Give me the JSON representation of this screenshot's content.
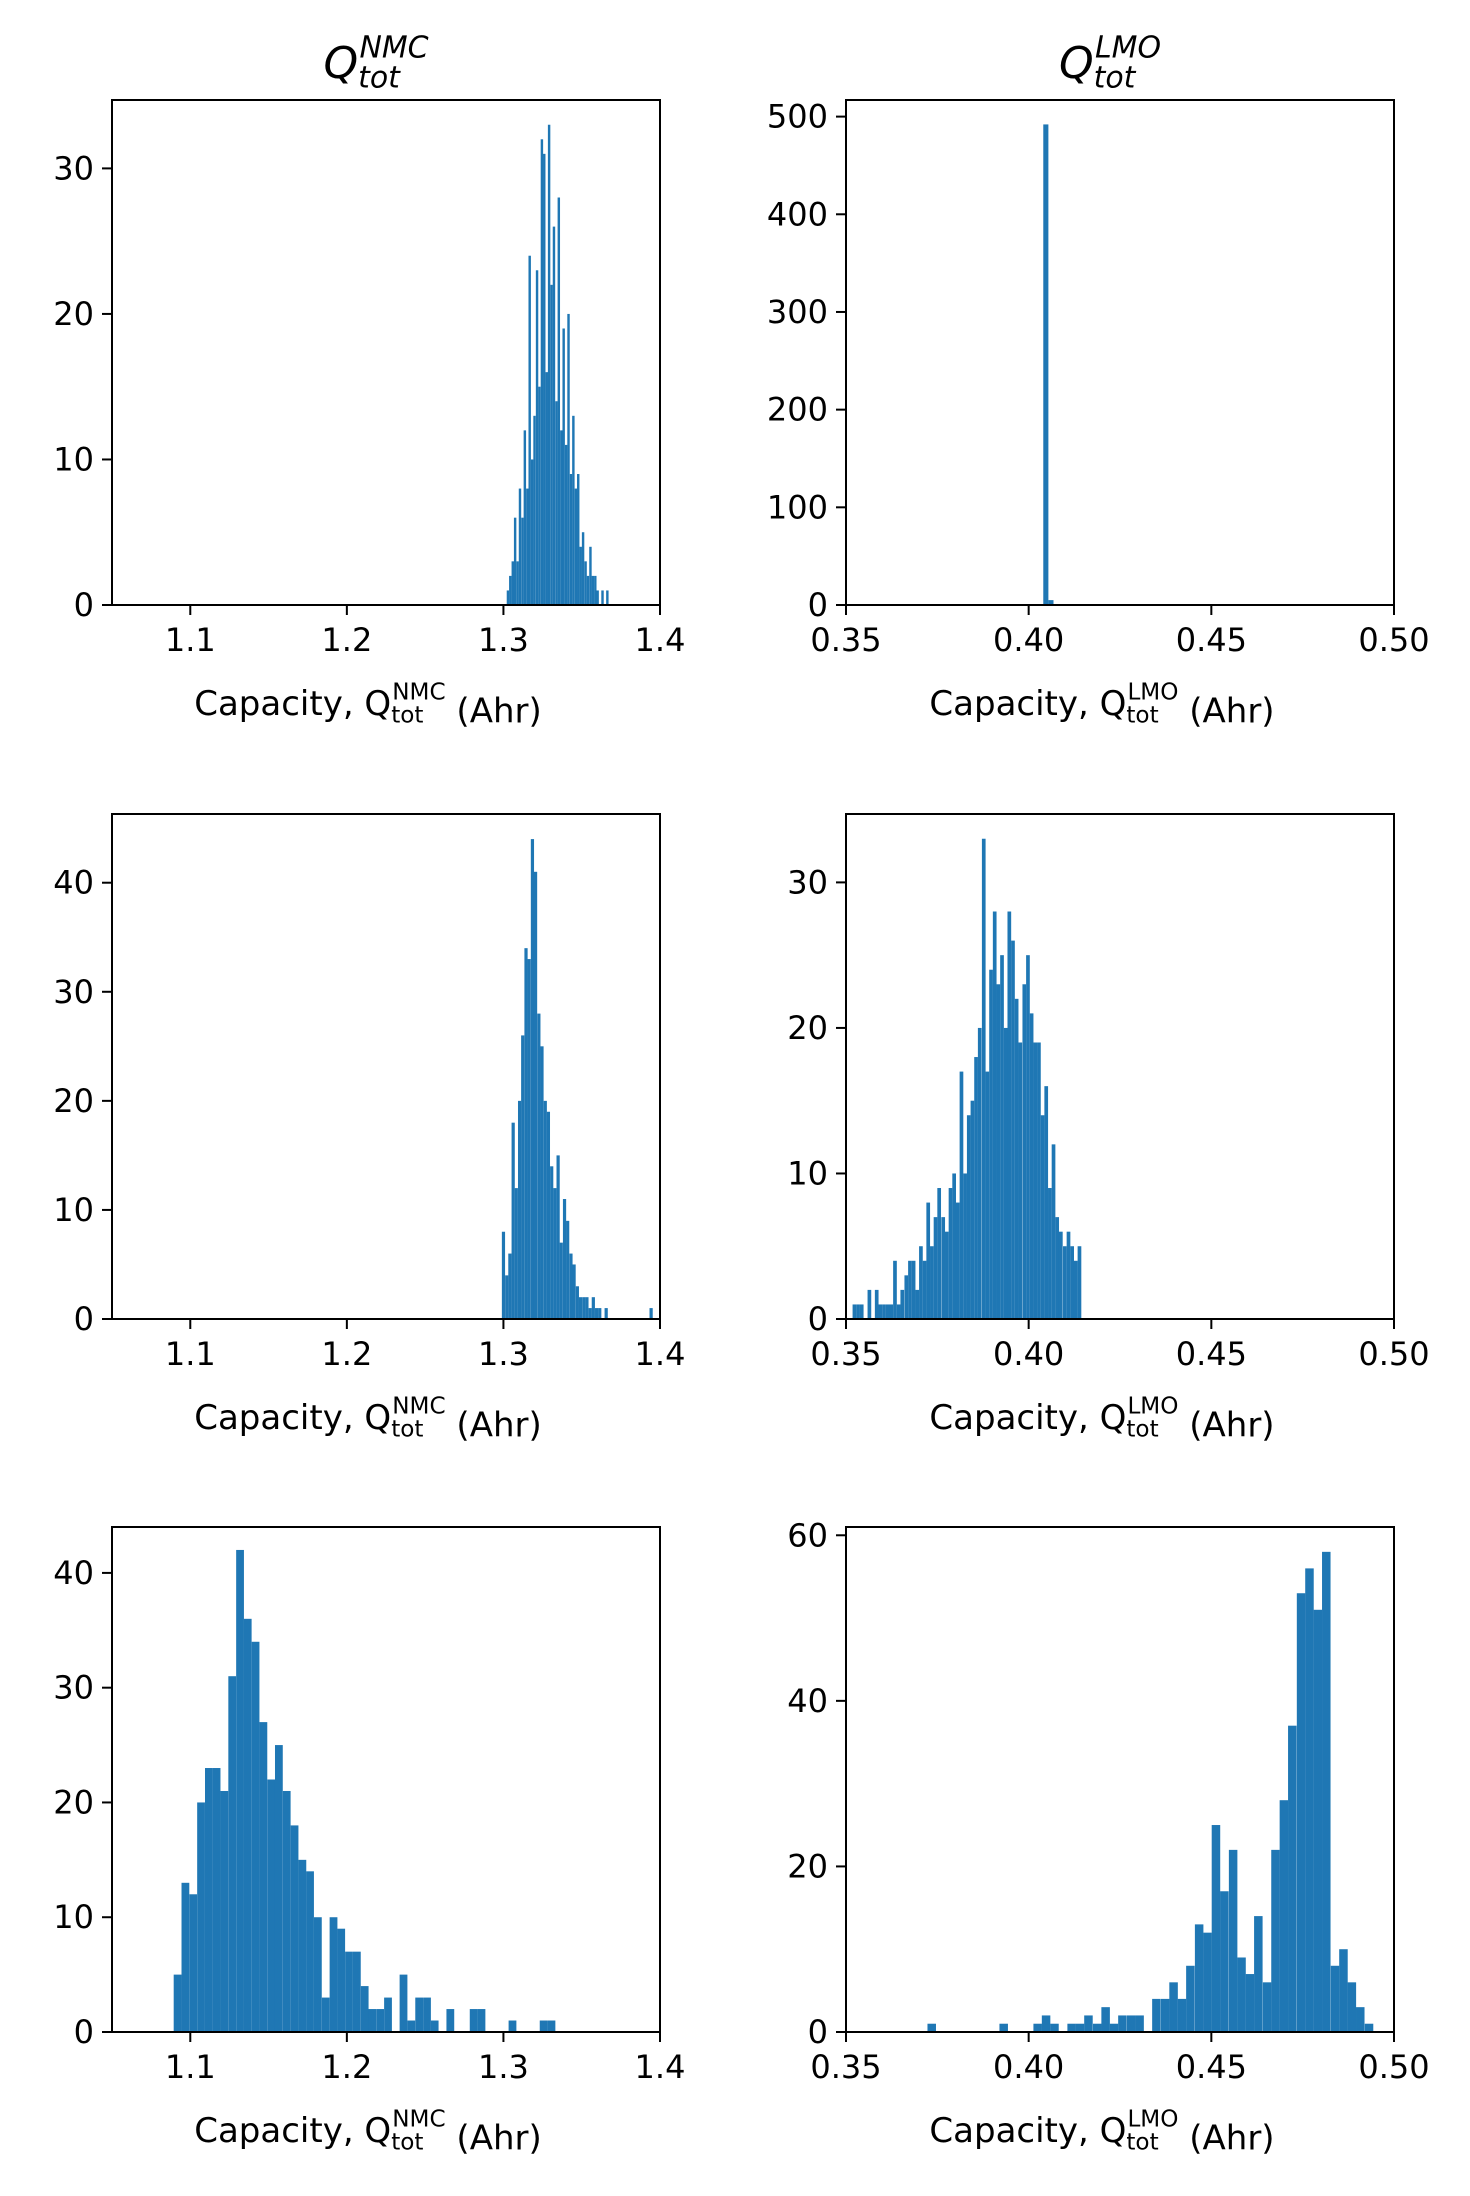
{
  "colors": {
    "bar": "#1f77b4",
    "axis": "#000000",
    "background": "#ffffff"
  },
  "chart_data": [
    {
      "type": "bar",
      "title": "Q_tot^NMC",
      "title_base": "Q",
      "title_sub": "tot",
      "title_sup": "NMC",
      "xlabel": "Capacity, Q_tot^NMC (Ahr)",
      "xlabel_prefix": "Capacity, Q",
      "xlabel_sub": "tot",
      "xlabel_sup": "NMC",
      "xlabel_suffix": " (Ahr)",
      "ylabel": "",
      "xlim": [
        1.05,
        1.4
      ],
      "ylim": [
        0,
        34.7
      ],
      "xticks": [
        1.1,
        1.2,
        1.3,
        1.4
      ],
      "xtick_labels": [
        "1.1",
        "1.2",
        "1.3",
        "1.4"
      ],
      "yticks": [
        0,
        10,
        20,
        30
      ],
      "ytick_labels": [
        "0",
        "10",
        "20",
        "30"
      ],
      "bin_width": 0.00155,
      "bins": [
        {
          "x": 1.3021,
          "y": 1
        },
        {
          "x": 1.3036,
          "y": 2
        },
        {
          "x": 1.3052,
          "y": 3
        },
        {
          "x": 1.3067,
          "y": 6
        },
        {
          "x": 1.3083,
          "y": 3
        },
        {
          "x": 1.3098,
          "y": 8
        },
        {
          "x": 1.3114,
          "y": 6
        },
        {
          "x": 1.3129,
          "y": 12
        },
        {
          "x": 1.3145,
          "y": 8
        },
        {
          "x": 1.316,
          "y": 24
        },
        {
          "x": 1.3176,
          "y": 10
        },
        {
          "x": 1.3191,
          "y": 13
        },
        {
          "x": 1.3207,
          "y": 23
        },
        {
          "x": 1.3222,
          "y": 15
        },
        {
          "x": 1.3238,
          "y": 32
        },
        {
          "x": 1.3253,
          "y": 31
        },
        {
          "x": 1.3269,
          "y": 16
        },
        {
          "x": 1.3284,
          "y": 33
        },
        {
          "x": 1.33,
          "y": 22
        },
        {
          "x": 1.3315,
          "y": 26
        },
        {
          "x": 1.3331,
          "y": 14
        },
        {
          "x": 1.3346,
          "y": 28
        },
        {
          "x": 1.3362,
          "y": 12
        },
        {
          "x": 1.3377,
          "y": 19
        },
        {
          "x": 1.3393,
          "y": 11
        },
        {
          "x": 1.3408,
          "y": 20
        },
        {
          "x": 1.3424,
          "y": 9
        },
        {
          "x": 1.3439,
          "y": 13
        },
        {
          "x": 1.3455,
          "y": 8
        },
        {
          "x": 1.347,
          "y": 9
        },
        {
          "x": 1.3486,
          "y": 4
        },
        {
          "x": 1.3501,
          "y": 5
        },
        {
          "x": 1.3517,
          "y": 3
        },
        {
          "x": 1.3532,
          "y": 2
        },
        {
          "x": 1.3548,
          "y": 4
        },
        {
          "x": 1.3563,
          "y": 2
        },
        {
          "x": 1.3579,
          "y": 2
        },
        {
          "x": 1.3594,
          "y": 1
        },
        {
          "x": 1.3625,
          "y": 1
        },
        {
          "x": 1.3656,
          "y": 1
        }
      ]
    },
    {
      "type": "bar",
      "title": "Q_tot^LMO",
      "title_base": "Q",
      "title_sub": "tot",
      "title_sup": "LMO",
      "xlabel": "Capacity, Q_tot^LMO (Ahr)",
      "xlabel_prefix": "Capacity, Q",
      "xlabel_sub": "tot",
      "xlabel_sup": "LMO",
      "xlabel_suffix": " (Ahr)",
      "ylabel": "",
      "xlim": [
        0.35,
        0.5
      ],
      "ylim": [
        0,
        517
      ],
      "xticks": [
        0.35,
        0.4,
        0.45,
        0.5
      ],
      "xtick_labels": [
        "0.35",
        "0.40",
        "0.45",
        "0.50"
      ],
      "yticks": [
        0,
        100,
        200,
        300,
        400,
        500
      ],
      "ytick_labels": [
        "0",
        "100",
        "200",
        "300",
        "400",
        "500"
      ],
      "bin_width": 0.0014,
      "bins": [
        {
          "x": 0.404,
          "y": 492
        },
        {
          "x": 0.4054,
          "y": 5
        },
        {
          "x": 0.4068,
          "y": 1
        },
        {
          "x": 0.418,
          "y": 1
        }
      ]
    },
    {
      "type": "bar",
      "title": "",
      "xlabel": "Capacity, Q_tot^NMC (Ahr)",
      "xlabel_prefix": "Capacity, Q",
      "xlabel_sub": "tot",
      "xlabel_sup": "NMC",
      "xlabel_suffix": " (Ahr)",
      "ylabel": "",
      "xlim": [
        1.05,
        1.4
      ],
      "ylim": [
        0,
        46.3
      ],
      "xticks": [
        1.1,
        1.2,
        1.3,
        1.4
      ],
      "xtick_labels": [
        "1.1",
        "1.2",
        "1.3",
        "1.4"
      ],
      "yticks": [
        0,
        10,
        20,
        30,
        40
      ],
      "ytick_labels": [
        "0",
        "10",
        "20",
        "30",
        "40"
      ],
      "bin_width": 0.00205,
      "bins": [
        {
          "x": 1.299,
          "y": 8
        },
        {
          "x": 1.3011,
          "y": 4
        },
        {
          "x": 1.3031,
          "y": 6
        },
        {
          "x": 1.3052,
          "y": 18
        },
        {
          "x": 1.3072,
          "y": 12
        },
        {
          "x": 1.3093,
          "y": 20
        },
        {
          "x": 1.3113,
          "y": 26
        },
        {
          "x": 1.3134,
          "y": 34
        },
        {
          "x": 1.3154,
          "y": 33
        },
        {
          "x": 1.3175,
          "y": 44
        },
        {
          "x": 1.3195,
          "y": 41
        },
        {
          "x": 1.3216,
          "y": 28
        },
        {
          "x": 1.3236,
          "y": 25
        },
        {
          "x": 1.3257,
          "y": 20
        },
        {
          "x": 1.3277,
          "y": 19
        },
        {
          "x": 1.3298,
          "y": 14
        },
        {
          "x": 1.3318,
          "y": 12
        },
        {
          "x": 1.3339,
          "y": 15
        },
        {
          "x": 1.3359,
          "y": 7
        },
        {
          "x": 1.338,
          "y": 11
        },
        {
          "x": 1.34,
          "y": 9
        },
        {
          "x": 1.3421,
          "y": 6
        },
        {
          "x": 1.3441,
          "y": 5
        },
        {
          "x": 1.3462,
          "y": 3
        },
        {
          "x": 1.3482,
          "y": 2
        },
        {
          "x": 1.3503,
          "y": 2
        },
        {
          "x": 1.3523,
          "y": 2
        },
        {
          "x": 1.3544,
          "y": 1
        },
        {
          "x": 1.3564,
          "y": 2
        },
        {
          "x": 1.3585,
          "y": 1
        },
        {
          "x": 1.3605,
          "y": 1
        },
        {
          "x": 1.3646,
          "y": 1
        },
        {
          "x": 1.3933,
          "y": 1
        }
      ]
    },
    {
      "type": "bar",
      "title": "",
      "xlabel": "Capacity, Q_tot^LMO (Ahr)",
      "xlabel_prefix": "Capacity, Q",
      "xlabel_sub": "tot",
      "xlabel_sup": "LMO",
      "xlabel_suffix": " (Ahr)",
      "ylabel": "",
      "xlim": [
        0.35,
        0.5
      ],
      "ylim": [
        0,
        34.7
      ],
      "xticks": [
        0.35,
        0.4,
        0.45,
        0.5
      ],
      "xtick_labels": [
        "0.35",
        "0.40",
        "0.45",
        "0.50"
      ],
      "yticks": [
        0,
        10,
        20,
        30
      ],
      "ytick_labels": [
        "0",
        "10",
        "20",
        "30"
      ],
      "bin_width": 0.00101,
      "bins": [
        {
          "x": 0.3518,
          "y": 1
        },
        {
          "x": 0.3528,
          "y": 1
        },
        {
          "x": 0.3538,
          "y": 1
        },
        {
          "x": 0.3549,
          "y": 0
        },
        {
          "x": 0.3559,
          "y": 2
        },
        {
          "x": 0.3569,
          "y": 0
        },
        {
          "x": 0.3579,
          "y": 2
        },
        {
          "x": 0.3589,
          "y": 1
        },
        {
          "x": 0.3599,
          "y": 1
        },
        {
          "x": 0.3609,
          "y": 1
        },
        {
          "x": 0.3619,
          "y": 1
        },
        {
          "x": 0.3629,
          "y": 4
        },
        {
          "x": 0.3639,
          "y": 1
        },
        {
          "x": 0.3649,
          "y": 2
        },
        {
          "x": 0.366,
          "y": 3
        },
        {
          "x": 0.367,
          "y": 4
        },
        {
          "x": 0.368,
          "y": 4
        },
        {
          "x": 0.369,
          "y": 2
        },
        {
          "x": 0.37,
          "y": 5
        },
        {
          "x": 0.371,
          "y": 4
        },
        {
          "x": 0.372,
          "y": 8
        },
        {
          "x": 0.373,
          "y": 5
        },
        {
          "x": 0.374,
          "y": 7
        },
        {
          "x": 0.375,
          "y": 9
        },
        {
          "x": 0.3761,
          "y": 7
        },
        {
          "x": 0.3771,
          "y": 6
        },
        {
          "x": 0.3781,
          "y": 9
        },
        {
          "x": 0.3791,
          "y": 10
        },
        {
          "x": 0.3801,
          "y": 8
        },
        {
          "x": 0.3811,
          "y": 17
        },
        {
          "x": 0.3821,
          "y": 10
        },
        {
          "x": 0.3831,
          "y": 14
        },
        {
          "x": 0.3841,
          "y": 15
        },
        {
          "x": 0.3851,
          "y": 18
        },
        {
          "x": 0.3861,
          "y": 20
        },
        {
          "x": 0.3872,
          "y": 33
        },
        {
          "x": 0.3882,
          "y": 17
        },
        {
          "x": 0.3892,
          "y": 24
        },
        {
          "x": 0.3902,
          "y": 28
        },
        {
          "x": 0.3912,
          "y": 23
        },
        {
          "x": 0.3922,
          "y": 25
        },
        {
          "x": 0.3932,
          "y": 20
        },
        {
          "x": 0.3942,
          "y": 28
        },
        {
          "x": 0.3952,
          "y": 26
        },
        {
          "x": 0.3962,
          "y": 22
        },
        {
          "x": 0.3972,
          "y": 19
        },
        {
          "x": 0.3983,
          "y": 23
        },
        {
          "x": 0.3993,
          "y": 25
        },
        {
          "x": 0.4003,
          "y": 21
        },
        {
          "x": 0.4013,
          "y": 19
        },
        {
          "x": 0.4023,
          "y": 19
        },
        {
          "x": 0.4033,
          "y": 14
        },
        {
          "x": 0.4043,
          "y": 16
        },
        {
          "x": 0.4053,
          "y": 9
        },
        {
          "x": 0.4063,
          "y": 12
        },
        {
          "x": 0.4073,
          "y": 7
        },
        {
          "x": 0.4083,
          "y": 6
        },
        {
          "x": 0.4094,
          "y": 5
        },
        {
          "x": 0.4104,
          "y": 6
        },
        {
          "x": 0.4114,
          "y": 5
        },
        {
          "x": 0.4124,
          "y": 4
        },
        {
          "x": 0.4134,
          "y": 5
        }
      ]
    },
    {
      "type": "bar",
      "title": "",
      "xlabel": "Capacity, Q_tot^NMC (Ahr)",
      "xlabel_prefix": "Capacity, Q",
      "xlabel_sub": "tot",
      "xlabel_sup": "NMC",
      "xlabel_suffix": " (Ahr)",
      "ylabel": "",
      "xlim": [
        1.05,
        1.4
      ],
      "ylim": [
        0,
        44
      ],
      "xticks": [
        1.1,
        1.2,
        1.3,
        1.4
      ],
      "xtick_labels": [
        "1.1",
        "1.2",
        "1.3",
        "1.4"
      ],
      "yticks": [
        0,
        10,
        20,
        30,
        40
      ],
      "ytick_labels": [
        "0",
        "10",
        "20",
        "30",
        "40"
      ],
      "bin_width": 0.00497,
      "bins": [
        {
          "x": 1.0894,
          "y": 5
        },
        {
          "x": 1.0944,
          "y": 13
        },
        {
          "x": 1.0994,
          "y": 12
        },
        {
          "x": 1.1044,
          "y": 20
        },
        {
          "x": 1.1094,
          "y": 23
        },
        {
          "x": 1.1143,
          "y": 23
        },
        {
          "x": 1.1193,
          "y": 21
        },
        {
          "x": 1.1243,
          "y": 31
        },
        {
          "x": 1.1293,
          "y": 42
        },
        {
          "x": 1.1342,
          "y": 36
        },
        {
          "x": 1.1392,
          "y": 34
        },
        {
          "x": 1.1442,
          "y": 27
        },
        {
          "x": 1.1492,
          "y": 22
        },
        {
          "x": 1.1541,
          "y": 25
        },
        {
          "x": 1.1591,
          "y": 21
        },
        {
          "x": 1.1641,
          "y": 18
        },
        {
          "x": 1.1691,
          "y": 15
        },
        {
          "x": 1.174,
          "y": 14
        },
        {
          "x": 1.179,
          "y": 10
        },
        {
          "x": 1.184,
          "y": 3
        },
        {
          "x": 1.189,
          "y": 10
        },
        {
          "x": 1.1939,
          "y": 9
        },
        {
          "x": 1.1989,
          "y": 7
        },
        {
          "x": 1.2039,
          "y": 7
        },
        {
          "x": 1.2089,
          "y": 4
        },
        {
          "x": 1.2138,
          "y": 2
        },
        {
          "x": 1.2188,
          "y": 2
        },
        {
          "x": 1.2238,
          "y": 3
        },
        {
          "x": 1.2337,
          "y": 5
        },
        {
          "x": 1.2387,
          "y": 1
        },
        {
          "x": 1.2437,
          "y": 3
        },
        {
          "x": 1.2487,
          "y": 3
        },
        {
          "x": 1.2536,
          "y": 1
        },
        {
          "x": 1.2636,
          "y": 2
        },
        {
          "x": 1.2785,
          "y": 2
        },
        {
          "x": 1.2835,
          "y": 2
        },
        {
          "x": 1.3033,
          "y": 1
        },
        {
          "x": 1.3232,
          "y": 1
        },
        {
          "x": 1.3282,
          "y": 1
        }
      ]
    },
    {
      "type": "bar",
      "title": "",
      "xlabel": "Capacity, Q_tot^LMO (Ahr)",
      "xlabel_prefix": "Capacity, Q",
      "xlabel_sub": "tot",
      "xlabel_sup": "LMO",
      "xlabel_suffix": " (Ahr)",
      "ylabel": "",
      "xlim": [
        0.35,
        0.5
      ],
      "ylim": [
        0,
        61
      ],
      "xticks": [
        0.35,
        0.4,
        0.45,
        0.5
      ],
      "xtick_labels": [
        "0.35",
        "0.40",
        "0.45",
        "0.50"
      ],
      "yticks": [
        0,
        20,
        40,
        60
      ],
      "ytick_labels": [
        "0",
        "20",
        "40",
        "60"
      ],
      "bin_width": 0.00233,
      "bins": [
        {
          "x": 0.3723,
          "y": 1
        },
        {
          "x": 0.392,
          "y": 1
        },
        {
          "x": 0.4013,
          "y": 1
        },
        {
          "x": 0.4036,
          "y": 2
        },
        {
          "x": 0.4059,
          "y": 1
        },
        {
          "x": 0.4106,
          "y": 1
        },
        {
          "x": 0.4129,
          "y": 1
        },
        {
          "x": 0.4152,
          "y": 2
        },
        {
          "x": 0.4176,
          "y": 1
        },
        {
          "x": 0.4199,
          "y": 3
        },
        {
          "x": 0.4222,
          "y": 1
        },
        {
          "x": 0.4245,
          "y": 2
        },
        {
          "x": 0.4269,
          "y": 2
        },
        {
          "x": 0.4292,
          "y": 2
        },
        {
          "x": 0.4338,
          "y": 4
        },
        {
          "x": 0.4362,
          "y": 4
        },
        {
          "x": 0.4385,
          "y": 6
        },
        {
          "x": 0.4408,
          "y": 4
        },
        {
          "x": 0.4431,
          "y": 8
        },
        {
          "x": 0.4455,
          "y": 13
        },
        {
          "x": 0.4478,
          "y": 12
        },
        {
          "x": 0.4501,
          "y": 25
        },
        {
          "x": 0.4524,
          "y": 17
        },
        {
          "x": 0.4548,
          "y": 22
        },
        {
          "x": 0.4571,
          "y": 9
        },
        {
          "x": 0.4594,
          "y": 7
        },
        {
          "x": 0.4617,
          "y": 14
        },
        {
          "x": 0.4641,
          "y": 6
        },
        {
          "x": 0.4664,
          "y": 22
        },
        {
          "x": 0.4687,
          "y": 28
        },
        {
          "x": 0.471,
          "y": 37
        },
        {
          "x": 0.4734,
          "y": 53
        },
        {
          "x": 0.4757,
          "y": 56
        },
        {
          "x": 0.478,
          "y": 51
        },
        {
          "x": 0.4803,
          "y": 58
        },
        {
          "x": 0.4827,
          "y": 8
        },
        {
          "x": 0.485,
          "y": 10
        },
        {
          "x": 0.4873,
          "y": 6
        },
        {
          "x": 0.4896,
          "y": 3
        },
        {
          "x": 0.492,
          "y": 1
        }
      ]
    }
  ]
}
